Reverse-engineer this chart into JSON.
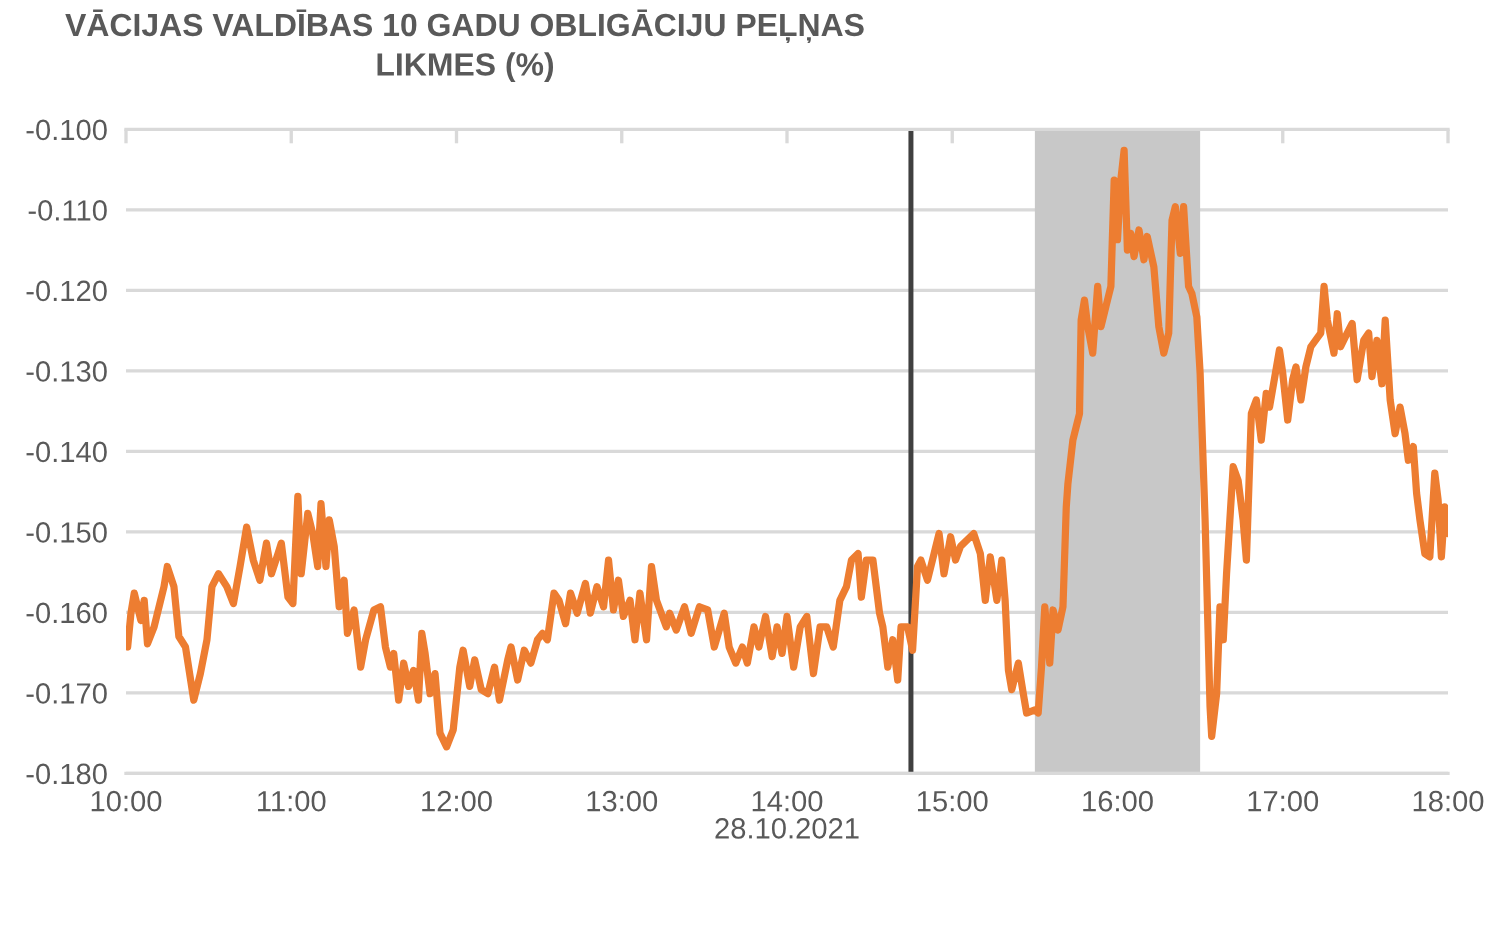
{
  "chart_data": {
    "type": "line",
    "title": "VĀCIJAS VALDĪBAS 10 GADU OBLIGĀCIJU PEĻŅAS LIKMES (%)",
    "xlabel": "28.10.2021",
    "x": [
      10.01,
      10.03,
      10.05,
      10.09,
      10.11,
      10.13,
      10.17,
      10.23,
      10.25,
      10.29,
      10.32,
      10.36,
      10.41,
      10.45,
      10.49,
      10.52,
      10.56,
      10.61,
      10.65,
      10.69,
      10.73,
      10.77,
      10.81,
      10.85,
      10.88,
      10.92,
      10.94,
      10.98,
      11.01,
      11.04,
      11.06,
      11.1,
      11.13,
      11.16,
      11.18,
      11.21,
      11.23,
      11.26,
      11.29,
      11.32,
      11.34,
      11.38,
      11.42,
      11.45,
      11.5,
      11.54,
      11.57,
      11.6,
      11.62,
      11.65,
      11.68,
      11.71,
      11.74,
      11.77,
      11.79,
      11.81,
      11.84,
      11.87,
      11.9,
      11.94,
      11.98,
      12.02,
      12.04,
      12.08,
      12.11,
      12.15,
      12.19,
      12.23,
      12.26,
      12.31,
      12.33,
      12.37,
      12.41,
      12.45,
      12.49,
      12.52,
      12.55,
      12.59,
      12.62,
      12.66,
      12.69,
      12.73,
      12.78,
      12.81,
      12.85,
      12.89,
      12.92,
      12.95,
      12.98,
      13.01,
      13.05,
      13.08,
      13.11,
      13.15,
      13.18,
      13.21,
      13.27,
      13.29,
      13.33,
      13.38,
      13.42,
      13.47,
      13.52,
      13.56,
      13.62,
      13.65,
      13.69,
      13.73,
      13.76,
      13.8,
      13.83,
      13.87,
      13.91,
      13.94,
      13.97,
      14.0,
      14.04,
      14.08,
      14.12,
      14.16,
      14.2,
      14.24,
      14.28,
      14.32,
      14.36,
      14.39,
      14.43,
      14.45,
      14.48,
      14.52,
      14.56,
      14.58,
      14.61,
      14.64,
      14.67,
      14.69,
      14.73,
      14.76,
      14.79,
      14.81,
      14.85,
      14.89,
      14.92,
      14.95,
      14.99,
      15.02,
      15.05,
      15.13,
      15.17,
      15.2,
      15.23,
      15.27,
      15.3,
      15.32,
      15.34,
      15.36,
      15.4,
      15.43,
      15.45,
      15.5,
      15.52,
      15.54,
      15.56,
      15.59,
      15.61,
      15.64,
      15.67,
      15.69,
      15.7,
      15.73,
      15.77,
      15.78,
      15.8,
      15.82,
      15.85,
      15.88,
      15.9,
      15.93,
      15.96,
      15.98,
      16.0,
      16.02,
      16.04,
      16.06,
      16.08,
      16.1,
      16.13,
      16.16,
      16.18,
      16.22,
      16.25,
      16.28,
      16.31,
      16.33,
      16.35,
      16.38,
      16.4,
      16.43,
      16.45,
      16.48,
      16.5,
      16.53,
      16.56,
      16.57,
      16.6,
      16.62,
      16.64,
      16.66,
      16.68,
      16.7,
      16.73,
      16.76,
      16.78,
      16.81,
      16.84,
      16.87,
      16.9,
      16.92,
      16.98,
      17.0,
      17.03,
      17.06,
      17.08,
      17.11,
      17.14,
      17.17,
      17.23,
      17.25,
      17.27,
      17.31,
      17.33,
      17.35,
      17.39,
      17.42,
      17.45,
      17.49,
      17.52,
      17.54,
      17.57,
      17.6,
      17.62,
      17.65,
      17.68,
      17.71,
      17.74,
      17.76,
      17.79,
      17.81,
      17.83,
      17.86,
      17.89,
      17.92,
      17.94,
      17.96,
      17.98,
      18.0
    ],
    "series": [
      {
        "color": "#ed7d31",
        "values": [
          -0.1643,
          -0.1601,
          -0.1576,
          -0.161,
          -0.1585,
          -0.1639,
          -0.1618,
          -0.1568,
          -0.1543,
          -0.1568,
          -0.163,
          -0.1643,
          -0.1709,
          -0.1676,
          -0.1634,
          -0.1568,
          -0.1552,
          -0.1568,
          -0.1589,
          -0.1543,
          -0.1494,
          -0.1535,
          -0.156,
          -0.1514,
          -0.1552,
          -0.1527,
          -0.1514,
          -0.1581,
          -0.1589,
          -0.1456,
          -0.1552,
          -0.1477,
          -0.1502,
          -0.1543,
          -0.1465,
          -0.1543,
          -0.1485,
          -0.1518,
          -0.1593,
          -0.156,
          -0.1626,
          -0.1597,
          -0.1668,
          -0.1634,
          -0.1597,
          -0.1593,
          -0.1643,
          -0.1668,
          -0.1651,
          -0.1709,
          -0.1663,
          -0.1692,
          -0.1672,
          -0.1709,
          -0.1626,
          -0.1651,
          -0.1701,
          -0.1676,
          -0.175,
          -0.1767,
          -0.1746,
          -0.1668,
          -0.1647,
          -0.1692,
          -0.1659,
          -0.1696,
          -0.1701,
          -0.1668,
          -0.1709,
          -0.1659,
          -0.1643,
          -0.1684,
          -0.1647,
          -0.1663,
          -0.1634,
          -0.1626,
          -0.1634,
          -0.1576,
          -0.1585,
          -0.1614,
          -0.1576,
          -0.1601,
          -0.1564,
          -0.1601,
          -0.1568,
          -0.1593,
          -0.1535,
          -0.1597,
          -0.156,
          -0.1605,
          -0.1585,
          -0.1634,
          -0.1576,
          -0.1634,
          -0.1543,
          -0.1585,
          -0.1618,
          -0.1601,
          -0.1622,
          -0.1593,
          -0.1626,
          -0.1593,
          -0.1597,
          -0.1643,
          -0.1601,
          -0.1643,
          -0.1663,
          -0.1643,
          -0.1663,
          -0.1618,
          -0.1643,
          -0.1605,
          -0.1655,
          -0.1618,
          -0.1651,
          -0.1605,
          -0.1668,
          -0.1618,
          -0.1605,
          -0.1676,
          -0.1618,
          -0.1618,
          -0.1643,
          -0.1585,
          -0.1568,
          -0.1535,
          -0.1527,
          -0.1581,
          -0.1535,
          -0.1535,
          -0.1601,
          -0.1618,
          -0.1668,
          -0.1634,
          -0.1684,
          -0.1618,
          -0.1618,
          -0.1647,
          -0.1543,
          -0.1535,
          -0.156,
          -0.1527,
          -0.1502,
          -0.1552,
          -0.1506,
          -0.1535,
          -0.1518,
          -0.1502,
          -0.1527,
          -0.1585,
          -0.1531,
          -0.1585,
          -0.1535,
          -0.1585,
          -0.1672,
          -0.1696,
          -0.1663,
          -0.1701,
          -0.1725,
          -0.1721,
          -0.1725,
          -0.1668,
          -0.1593,
          -0.1663,
          -0.1597,
          -0.1622,
          -0.1593,
          -0.1469,
          -0.144,
          -0.1386,
          -0.1353,
          -0.1237,
          -0.1212,
          -0.1245,
          -0.1278,
          -0.1195,
          -0.1245,
          -0.122,
          -0.1195,
          -0.1063,
          -0.1137,
          -0.1063,
          -0.1026,
          -0.115,
          -0.1129,
          -0.1158,
          -0.1125,
          -0.1162,
          -0.1133,
          -0.1171,
          -0.1245,
          -0.1278,
          -0.1253,
          -0.1113,
          -0.1096,
          -0.1154,
          -0.1096,
          -0.1195,
          -0.1204,
          -0.1233,
          -0.1303,
          -0.1485,
          -0.1717,
          -0.1754,
          -0.1701,
          -0.1593,
          -0.1634,
          -0.1552,
          -0.1485,
          -0.1419,
          -0.1436,
          -0.1485,
          -0.1535,
          -0.1353,
          -0.1336,
          -0.1386,
          -0.1328,
          -0.1345,
          -0.1274,
          -0.1303,
          -0.1361,
          -0.1311,
          -0.1295,
          -0.1336,
          -0.1295,
          -0.127,
          -0.1253,
          -0.1195,
          -0.1237,
          -0.1278,
          -0.1229,
          -0.127,
          -0.1253,
          -0.1241,
          -0.1311,
          -0.1262,
          -0.1253,
          -0.1307,
          -0.1262,
          -0.1316,
          -0.1237,
          -0.1336,
          -0.1378,
          -0.1345,
          -0.1378,
          -0.1411,
          -0.1394,
          -0.1452,
          -0.1485,
          -0.1527,
          -0.1531,
          -0.1427,
          -0.146,
          -0.1531,
          -0.1469,
          -0.1502
        ]
      }
    ],
    "xlim": [
      10,
      18
    ],
    "xticks": [
      {
        "value": 10,
        "label": "10:00"
      },
      {
        "value": 11,
        "label": "11:00"
      },
      {
        "value": 12,
        "label": "12:00"
      },
      {
        "value": 13,
        "label": "13:00"
      },
      {
        "value": 14,
        "label": "14:00"
      },
      {
        "value": 15,
        "label": "15:00"
      },
      {
        "value": 16,
        "label": "16:00"
      },
      {
        "value": 17,
        "label": "17:00"
      },
      {
        "value": 18,
        "label": "18:00"
      }
    ],
    "ylim": [
      -0.18,
      -0.1
    ],
    "yticks": [
      {
        "value": -0.18,
        "label": "-0.180"
      },
      {
        "value": -0.17,
        "label": "-0.170"
      },
      {
        "value": -0.16,
        "label": "-0.160"
      },
      {
        "value": -0.15,
        "label": "-0.150"
      },
      {
        "value": -0.14,
        "label": "-0.140"
      },
      {
        "value": -0.13,
        "label": "-0.130"
      },
      {
        "value": -0.12,
        "label": "-0.120"
      },
      {
        "value": -0.11,
        "label": "-0.110"
      },
      {
        "value": -0.1,
        "label": "-0.100"
      }
    ],
    "grid": "y",
    "marker": "none",
    "line_style": "solid",
    "ref_lines": [
      {
        "axis": "x",
        "value": 14.75,
        "color": "#404040"
      }
    ],
    "bands": [
      {
        "axis": "x",
        "from": 15.5,
        "to": 16.5,
        "color": "#c8c8c8"
      }
    ]
  }
}
